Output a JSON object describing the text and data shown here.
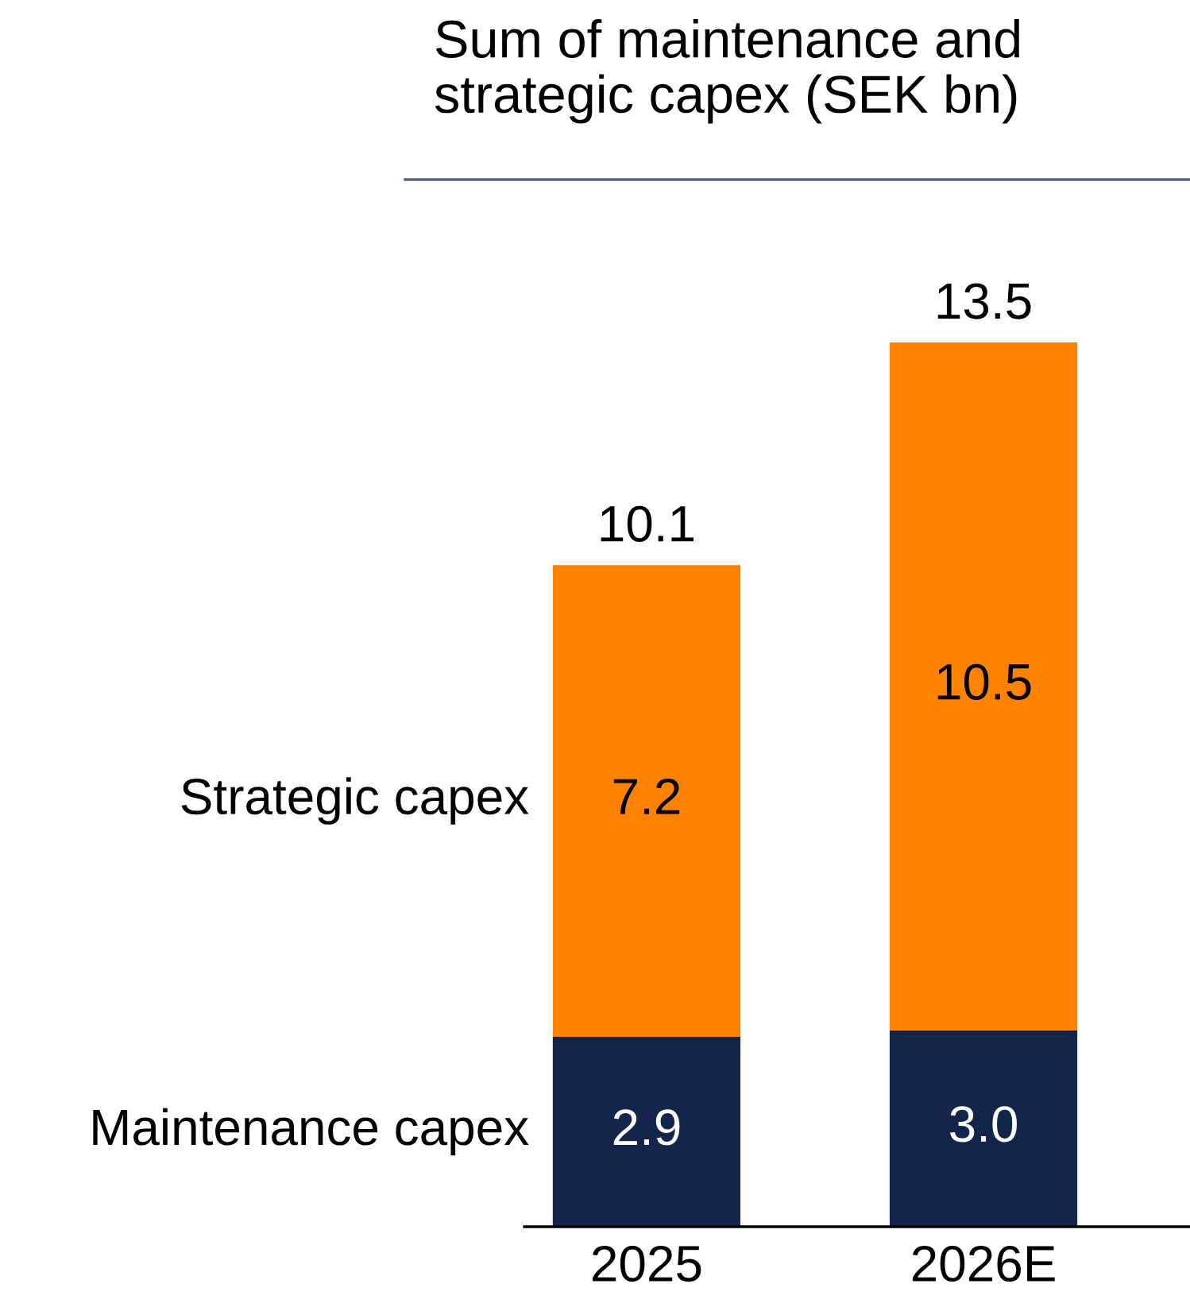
{
  "chart_data": {
    "type": "bar",
    "title": "Sum of maintenance and\nstrategic capex (SEK bn)",
    "categories": [
      "2025",
      "2026E"
    ],
    "stacked": true,
    "totals": [
      "10.1",
      "13.5"
    ],
    "series": [
      {
        "name": "Maintenance capex",
        "color": "#13254a",
        "values": [
          2.9,
          3.0
        ],
        "value_labels": [
          "2.9",
          "3.0"
        ]
      },
      {
        "name": "Strategic capex",
        "color": "#ff8200",
        "values": [
          7.2,
          10.5
        ],
        "value_labels": [
          "7.2",
          "10.5"
        ]
      }
    ]
  }
}
